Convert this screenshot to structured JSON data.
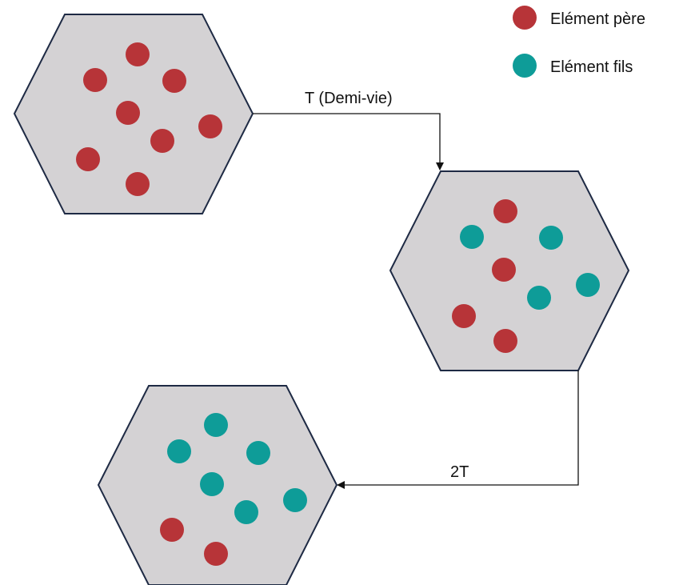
{
  "colors": {
    "parent": "#b73438",
    "daughter": "#0e9c98",
    "hex_fill": "#d4d2d4",
    "hex_stroke": "#1e2a44",
    "arrow": "#111111"
  },
  "legend": {
    "parent_label": "Elément père",
    "daughter_label": "Elément fils"
  },
  "arrows": {
    "first_label": "T (Demi-vie)",
    "second_label": "2T"
  },
  "stages": [
    {
      "name": "initial",
      "parent_count": 8,
      "daughter_count": 0
    },
    {
      "name": "after-T",
      "parent_count": 4,
      "daughter_count": 4
    },
    {
      "name": "after-2T",
      "parent_count": 2,
      "daughter_count": 6
    }
  ]
}
